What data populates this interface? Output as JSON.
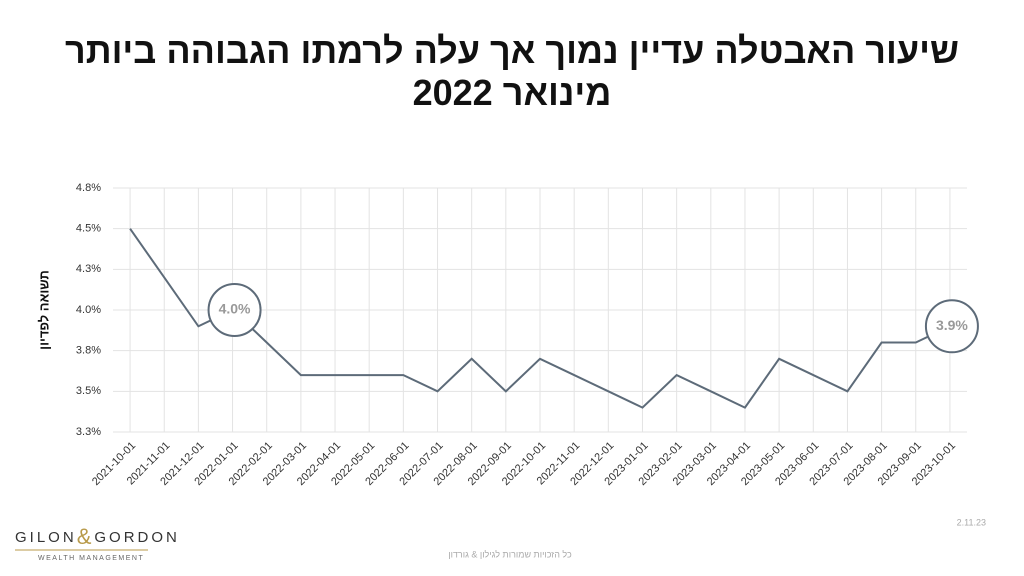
{
  "chart_data": {
    "type": "line",
    "title": "שיעור האבטלה עדיין נמוך אך עלה לרמתו הגבוהה ביותר מינואר 2022",
    "y_label": "תשואה לפדיון",
    "categories": [
      "2021-10-01",
      "2021-11-01",
      "2021-12-01",
      "2022-01-01",
      "2022-02-01",
      "2022-03-01",
      "2022-04-01",
      "2022-05-01",
      "2022-06-01",
      "2022-07-01",
      "2022-08-01",
      "2022-09-01",
      "2022-10-01",
      "2022-11-01",
      "2022-12-01",
      "2023-01-01",
      "2023-02-01",
      "2023-03-01",
      "2023-04-01",
      "2023-05-01",
      "2023-06-01",
      "2023-07-01",
      "2023-08-01",
      "2023-09-01",
      "2023-10-01"
    ],
    "series": [
      {
        "color": "#5d6b79",
        "values": [
          4.5,
          4.2,
          3.9,
          4.0,
          3.8,
          3.6,
          3.6,
          3.6,
          3.6,
          3.5,
          3.7,
          3.5,
          3.7,
          3.6,
          3.5,
          3.4,
          3.6,
          3.5,
          3.4,
          3.7,
          3.6,
          3.5,
          3.8,
          3.8,
          3.9
        ],
        "value_labels": [
          null,
          null,
          null,
          "4.0%",
          null,
          null,
          null,
          null,
          null,
          null,
          null,
          null,
          null,
          null,
          null,
          null,
          null,
          null,
          null,
          null,
          null,
          null,
          null,
          null,
          "3.9%"
        ]
      }
    ],
    "ylim": [
      3.25,
      4.75
    ],
    "yticks": [
      {
        "value": 3.25,
        "label": "3.3%"
      },
      {
        "value": 3.5,
        "label": "3.5%"
      },
      {
        "value": 3.75,
        "label": "3.8%"
      },
      {
        "value": 4.0,
        "label": "4.0%"
      },
      {
        "value": 4.25,
        "label": "4.3%"
      },
      {
        "value": 4.5,
        "label": "4.5%"
      },
      {
        "value": 4.75,
        "label": "4.8%"
      }
    ],
    "grid": true
  },
  "footer": {
    "date": "2.11.23",
    "copyright": "כל הזכויות שמורות לגילון & גורדון"
  },
  "logo": {
    "left": "GILON",
    "amp": "&",
    "right": "GORDON",
    "tagline": "WEALTH MANAGEMENT"
  }
}
